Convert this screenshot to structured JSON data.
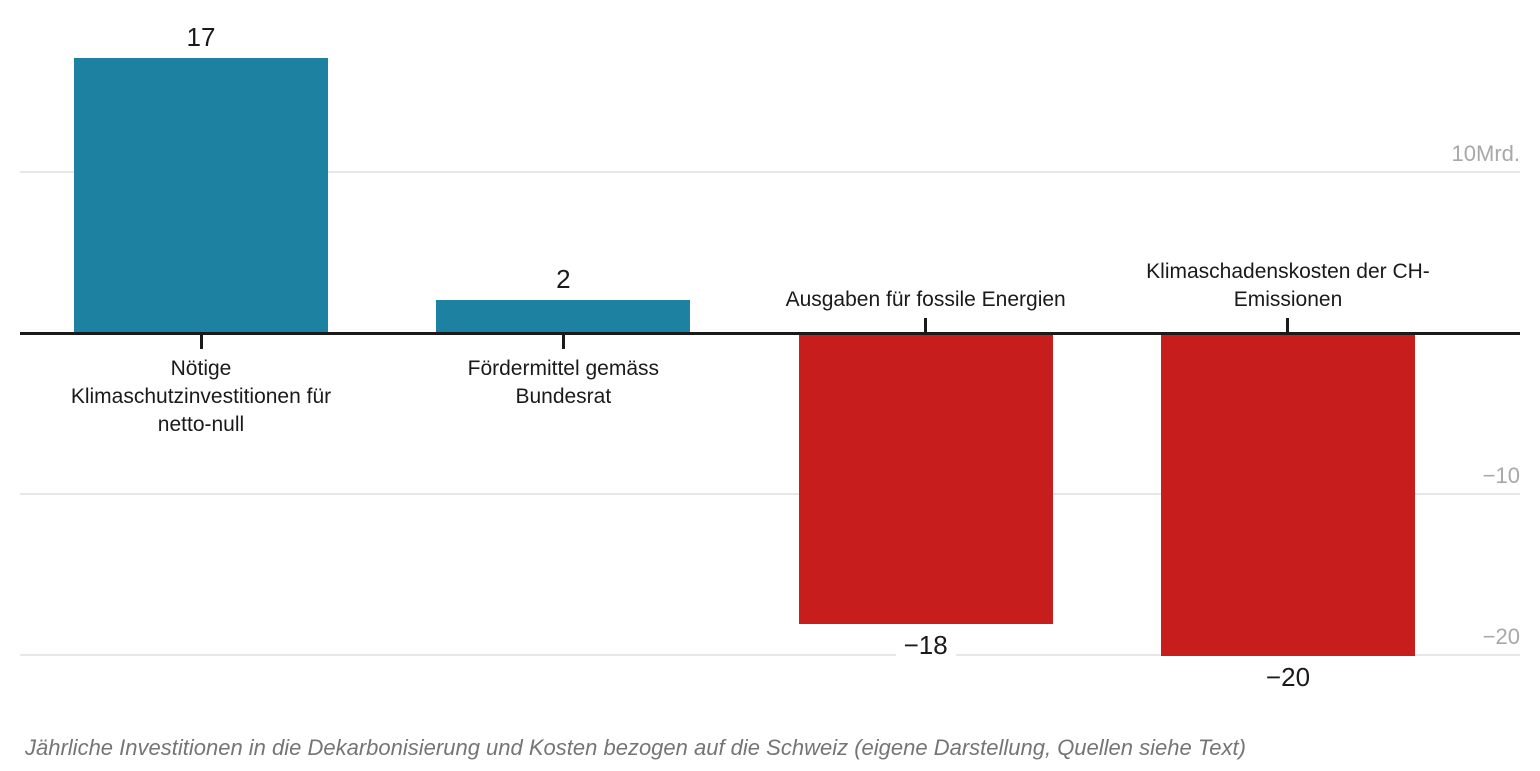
{
  "chart_data": {
    "type": "bar",
    "title": "",
    "categories": [
      "Nötige Klimaschutzinvestitionen für netto-null",
      "Fördermittel gemäss Bundesrat",
      "Ausgaben für fossile Energien",
      "Klimaschadenskosten der CH-Emissionen"
    ],
    "values": [
      17,
      2,
      -18,
      -20
    ],
    "bars": [
      {
        "value": 17,
        "value_label": "17",
        "label_lines": [
          "Nötige",
          "Klimaschutzinvestitionen für",
          "netto-null"
        ]
      },
      {
        "value": 2,
        "value_label": "2",
        "label_lines": [
          "Fördermittel gemäss",
          "Bundesrat"
        ]
      },
      {
        "value": -18,
        "value_label": "−18",
        "label_lines": [
          "Ausgaben für fossile Energien"
        ]
      },
      {
        "value": -20,
        "value_label": "−20",
        "label_lines": [
          "Klimaschadenskosten der CH-",
          "Emissionen"
        ]
      }
    ],
    "y_axis": {
      "unit_suffix_on_first": "Mrd.",
      "gridlines": [
        {
          "value": 10,
          "label": "10Mrd."
        },
        {
          "value": -10,
          "label": "−10"
        },
        {
          "value": -20,
          "label": "−20"
        }
      ],
      "ylim": [
        -21.5,
        19.5
      ],
      "grid": true
    },
    "legend": "none",
    "caption": "Jährliche Investitionen in die Dekarbonisierung und Kosten bezogen auf die Schweiz (eigene Darstellung, Quellen siehe Text)",
    "colors": {
      "positive": "#1d81a2",
      "negative": "#c81d1d",
      "gridline": "#e7e7e7",
      "zero_axis": "#1a1a1a",
      "axis_label": "#a8a8a8",
      "value_label": "#1a1a1a",
      "category_label": "#1a1a1a",
      "caption": "#757575",
      "background": "#ffffff"
    }
  }
}
